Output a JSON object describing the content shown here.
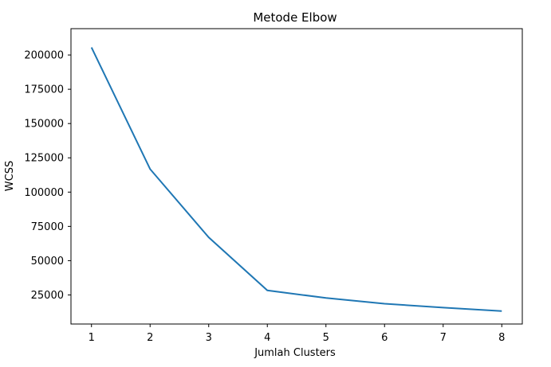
{
  "chart_data": {
    "type": "line",
    "title": "Metode Elbow",
    "xlabel": "Jumlah Clusters",
    "ylabel": "WCSS",
    "x": [
      1,
      2,
      3,
      4,
      5,
      6,
      7,
      8
    ],
    "series": [
      {
        "values": [
          205500,
          116800,
          67000,
          28300,
          22800,
          18600,
          15800,
          13200
        ]
      }
    ],
    "xticks": [
      1,
      2,
      3,
      4,
      5,
      6,
      7,
      8
    ],
    "yticks": [
      25000,
      50000,
      75000,
      100000,
      125000,
      150000,
      175000,
      200000
    ],
    "xlim": [
      0.65,
      8.35
    ],
    "ylim": [
      3800,
      219200
    ],
    "grid": false,
    "colors": {
      "line": "#1f77b4",
      "axes": "#000000",
      "background": "#ffffff"
    }
  }
}
